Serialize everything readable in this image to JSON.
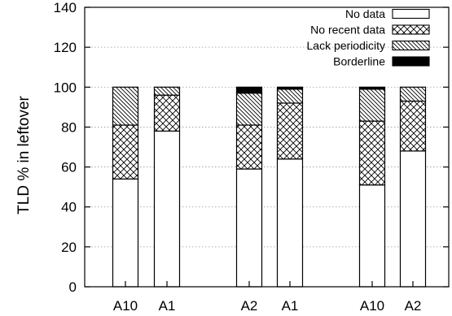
{
  "chart_data": {
    "type": "bar",
    "stacked": true,
    "title": "",
    "xlabel": "",
    "ylabel": "TLD % in leftover",
    "ylim": [
      0,
      140
    ],
    "yticks": [
      0,
      20,
      40,
      60,
      80,
      100,
      120,
      140
    ],
    "grid": "horizontal dotted",
    "legend_position": "top-right",
    "categories": [
      "A10",
      "A1",
      "A2",
      "A1",
      "A10",
      "A2"
    ],
    "series": [
      {
        "name": "No data",
        "pattern": "none",
        "color": "#ffffff",
        "values": [
          54,
          78,
          59,
          64,
          51,
          68
        ]
      },
      {
        "name": "No recent data",
        "pattern": "crosshatch",
        "color": "#000000",
        "values": [
          27,
          18,
          22,
          28,
          32,
          25
        ]
      },
      {
        "name": "Lack periodicity",
        "pattern": "diagonal",
        "color": "#000000",
        "values": [
          19,
          4,
          16,
          7,
          16,
          7
        ]
      },
      {
        "name": "Borderline",
        "pattern": "solid",
        "color": "#000000",
        "values": [
          0,
          0,
          3,
          1,
          1,
          0
        ]
      }
    ]
  }
}
